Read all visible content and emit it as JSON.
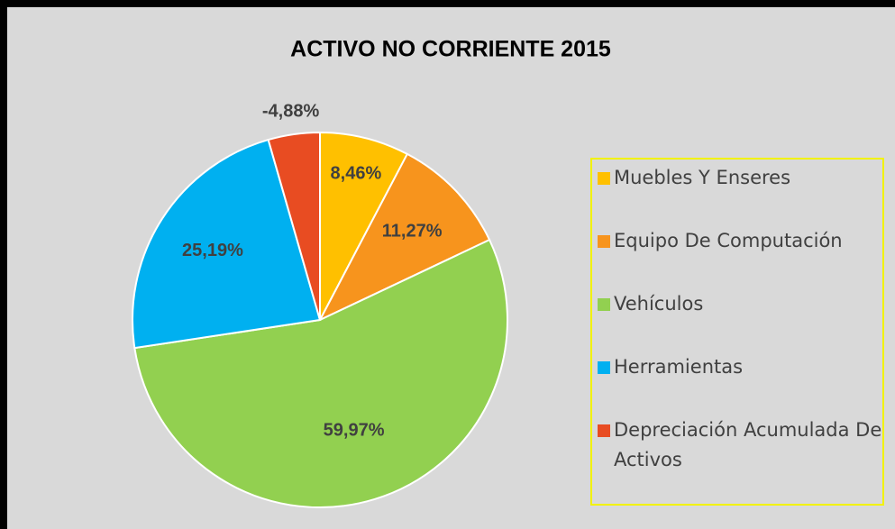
{
  "chart_data": {
    "type": "pie",
    "title": "ACTIVO NO CORRIENTE  2015",
    "categories": [
      "Muebles Y Enseres",
      "Equipo De Computación",
      "Vehículos",
      "Herramientas",
      "Depreciación Acumulada De Activos"
    ],
    "values": [
      8.46,
      11.27,
      59.97,
      25.19,
      -4.88
    ],
    "value_labels": [
      "8,46%",
      "11,27%",
      "59,97%",
      "25,19%",
      "-4,88%"
    ],
    "colors": [
      "#ffc000",
      "#f7941d",
      "#92d050",
      "#00b0f0",
      "#e84c22"
    ],
    "legend": "right"
  }
}
